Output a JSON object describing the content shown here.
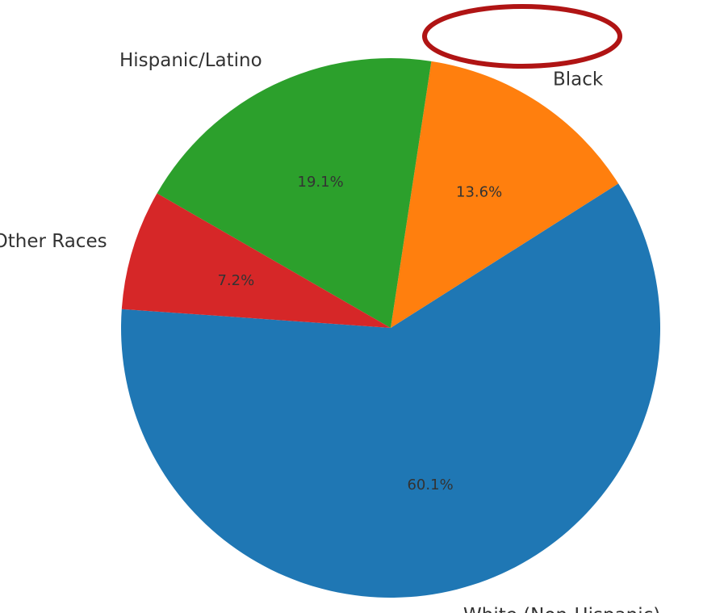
{
  "chart_data": {
    "type": "pie",
    "slices": [
      {
        "label": "White (Non-Hispanic)",
        "value": 60.1,
        "pct_label": "60.1%",
        "color": "#1f77b4"
      },
      {
        "label": "Black",
        "value": 13.6,
        "pct_label": "13.6%",
        "color": "#ff7f0e"
      },
      {
        "label": "Hispanic/Latino",
        "value": 19.1,
        "pct_label": "19.1%",
        "color": "#2ca02c",
        "highlighted": true
      },
      {
        "label": "Asian & Other Races",
        "value": 7.2,
        "pct_label": "7.2%",
        "color": "#d62728"
      }
    ],
    "annotation": {
      "type": "ellipse",
      "target": "Hispanic/Latino",
      "color": "#b01414"
    }
  }
}
